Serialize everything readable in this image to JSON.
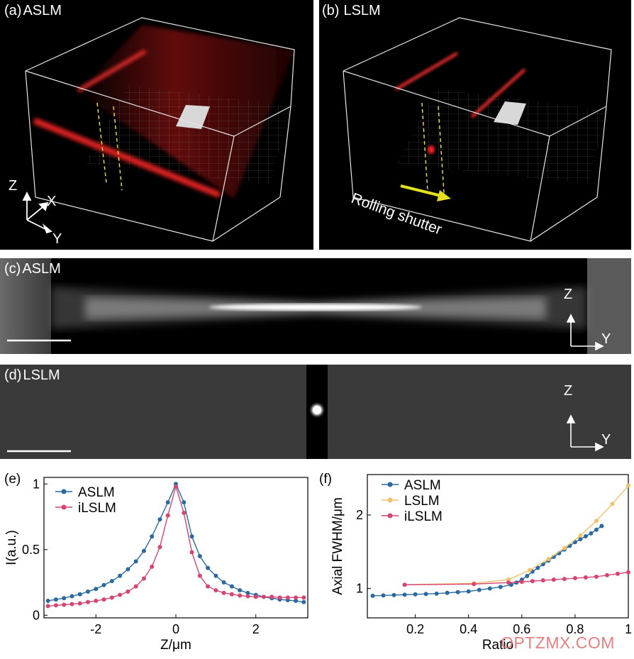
{
  "panel_a": {
    "label": "(a)",
    "title": "ASLM",
    "axis_z": "Z",
    "axis_x": "X",
    "axis_y": "Y"
  },
  "panel_b": {
    "label": "(b)",
    "title": "LSLM",
    "shutter_text": "Rolling shutter"
  },
  "panel_c": {
    "label": "(c)",
    "title": "ASLM",
    "axis_z": "Z",
    "axis_y": "Y"
  },
  "panel_d": {
    "label": "(d)",
    "title": "LSLM",
    "axis_z": "Z",
    "axis_y": "Y"
  },
  "watermark": "OPTZMX.COM",
  "colors": {
    "aslm": "#2a6aa0",
    "lslm": "#f2c06a",
    "ilslm": "#d64572"
  },
  "chart_data": [
    {
      "panel": "(e)",
      "type": "line",
      "xlabel": "Z/μm",
      "ylabel": "I(a.u.)",
      "xlim": [
        -3.3,
        3.3
      ],
      "ylim": [
        -0.02,
        1.05
      ],
      "xticks": [
        -2,
        0,
        2
      ],
      "yticks": [
        0,
        0.5,
        1
      ],
      "ytick_labels": [
        "0",
        "0.5",
        "1"
      ],
      "legend_position": "top-left",
      "series": [
        {
          "name": "ASLM",
          "color": "#2a6aa0",
          "x": [
            -3.2,
            -3.0,
            -2.8,
            -2.6,
            -2.4,
            -2.2,
            -2.0,
            -1.8,
            -1.6,
            -1.4,
            -1.2,
            -1.0,
            -0.8,
            -0.6,
            -0.4,
            -0.2,
            0.0,
            0.2,
            0.4,
            0.6,
            0.8,
            1.0,
            1.2,
            1.4,
            1.6,
            1.8,
            2.0,
            2.2,
            2.4,
            2.6,
            2.8,
            3.0,
            3.2
          ],
          "y": [
            0.11,
            0.12,
            0.13,
            0.145,
            0.16,
            0.18,
            0.2,
            0.23,
            0.26,
            0.3,
            0.35,
            0.41,
            0.49,
            0.6,
            0.73,
            0.86,
            1.0,
            0.86,
            0.6,
            0.45,
            0.36,
            0.3,
            0.25,
            0.22,
            0.19,
            0.17,
            0.155,
            0.14,
            0.13,
            0.12,
            0.115,
            0.11,
            0.1
          ]
        },
        {
          "name": "iLSLM",
          "color": "#d64572",
          "x": [
            -3.2,
            -3.0,
            -2.8,
            -2.6,
            -2.4,
            -2.2,
            -2.0,
            -1.8,
            -1.6,
            -1.4,
            -1.2,
            -1.0,
            -0.8,
            -0.6,
            -0.4,
            -0.2,
            0.0,
            0.2,
            0.4,
            0.6,
            0.8,
            1.0,
            1.2,
            1.4,
            1.6,
            1.8,
            2.0,
            2.2,
            2.4,
            2.6,
            2.8,
            3.0,
            3.2
          ],
          "y": [
            0.07,
            0.075,
            0.08,
            0.085,
            0.09,
            0.1,
            0.11,
            0.12,
            0.135,
            0.155,
            0.18,
            0.22,
            0.28,
            0.37,
            0.52,
            0.76,
            0.98,
            0.78,
            0.48,
            0.3,
            0.22,
            0.19,
            0.17,
            0.16,
            0.15,
            0.145,
            0.14,
            0.14,
            0.14,
            0.135,
            0.135,
            0.135,
            0.135
          ]
        }
      ]
    },
    {
      "panel": "(f)",
      "type": "line",
      "xlabel": "Ratio",
      "ylabel": "Axial FWHM/μm",
      "xlim": [
        0.02,
        1.0
      ],
      "ylim": [
        0.6,
        2.55
      ],
      "xticks": [
        0.2,
        0.4,
        0.6,
        0.8,
        1
      ],
      "xtick_labels": [
        "0.2",
        "0.4",
        "0.6",
        "0.8",
        "1"
      ],
      "yticks": [
        1,
        2
      ],
      "legend_position": "top-left",
      "series": [
        {
          "name": "ASLM",
          "color": "#2a6aa0",
          "x": [
            0.04,
            0.08,
            0.12,
            0.16,
            0.2,
            0.24,
            0.28,
            0.32,
            0.36,
            0.4,
            0.44,
            0.48,
            0.52,
            0.56,
            0.58,
            0.6,
            0.62,
            0.64,
            0.66,
            0.68,
            0.7,
            0.72,
            0.74,
            0.76,
            0.78,
            0.8,
            0.82,
            0.84,
            0.86,
            0.88,
            0.9
          ],
          "y": [
            0.9,
            0.905,
            0.91,
            0.915,
            0.92,
            0.925,
            0.93,
            0.94,
            0.95,
            0.96,
            0.98,
            1.0,
            1.02,
            1.05,
            1.08,
            1.12,
            1.17,
            1.23,
            1.28,
            1.33,
            1.38,
            1.43,
            1.48,
            1.53,
            1.58,
            1.63,
            1.67,
            1.71,
            1.75,
            1.8,
            1.85
          ]
        },
        {
          "name": "LSLM",
          "color": "#f2c06a",
          "x": [
            0.16,
            0.42,
            0.55,
            0.63,
            0.7,
            0.76,
            0.82,
            0.88,
            0.94,
            1.0
          ],
          "y": [
            1.05,
            1.07,
            1.12,
            1.25,
            1.4,
            1.55,
            1.72,
            1.92,
            2.15,
            2.4
          ]
        },
        {
          "name": "iLSLM",
          "color": "#d64572",
          "x": [
            0.16,
            0.42,
            0.55,
            0.6,
            0.64,
            0.68,
            0.72,
            0.76,
            0.8,
            0.84,
            0.88,
            0.92,
            0.96,
            1.0
          ],
          "y": [
            1.05,
            1.06,
            1.08,
            1.09,
            1.1,
            1.11,
            1.12,
            1.13,
            1.14,
            1.15,
            1.16,
            1.18,
            1.2,
            1.22
          ]
        }
      ]
    }
  ]
}
